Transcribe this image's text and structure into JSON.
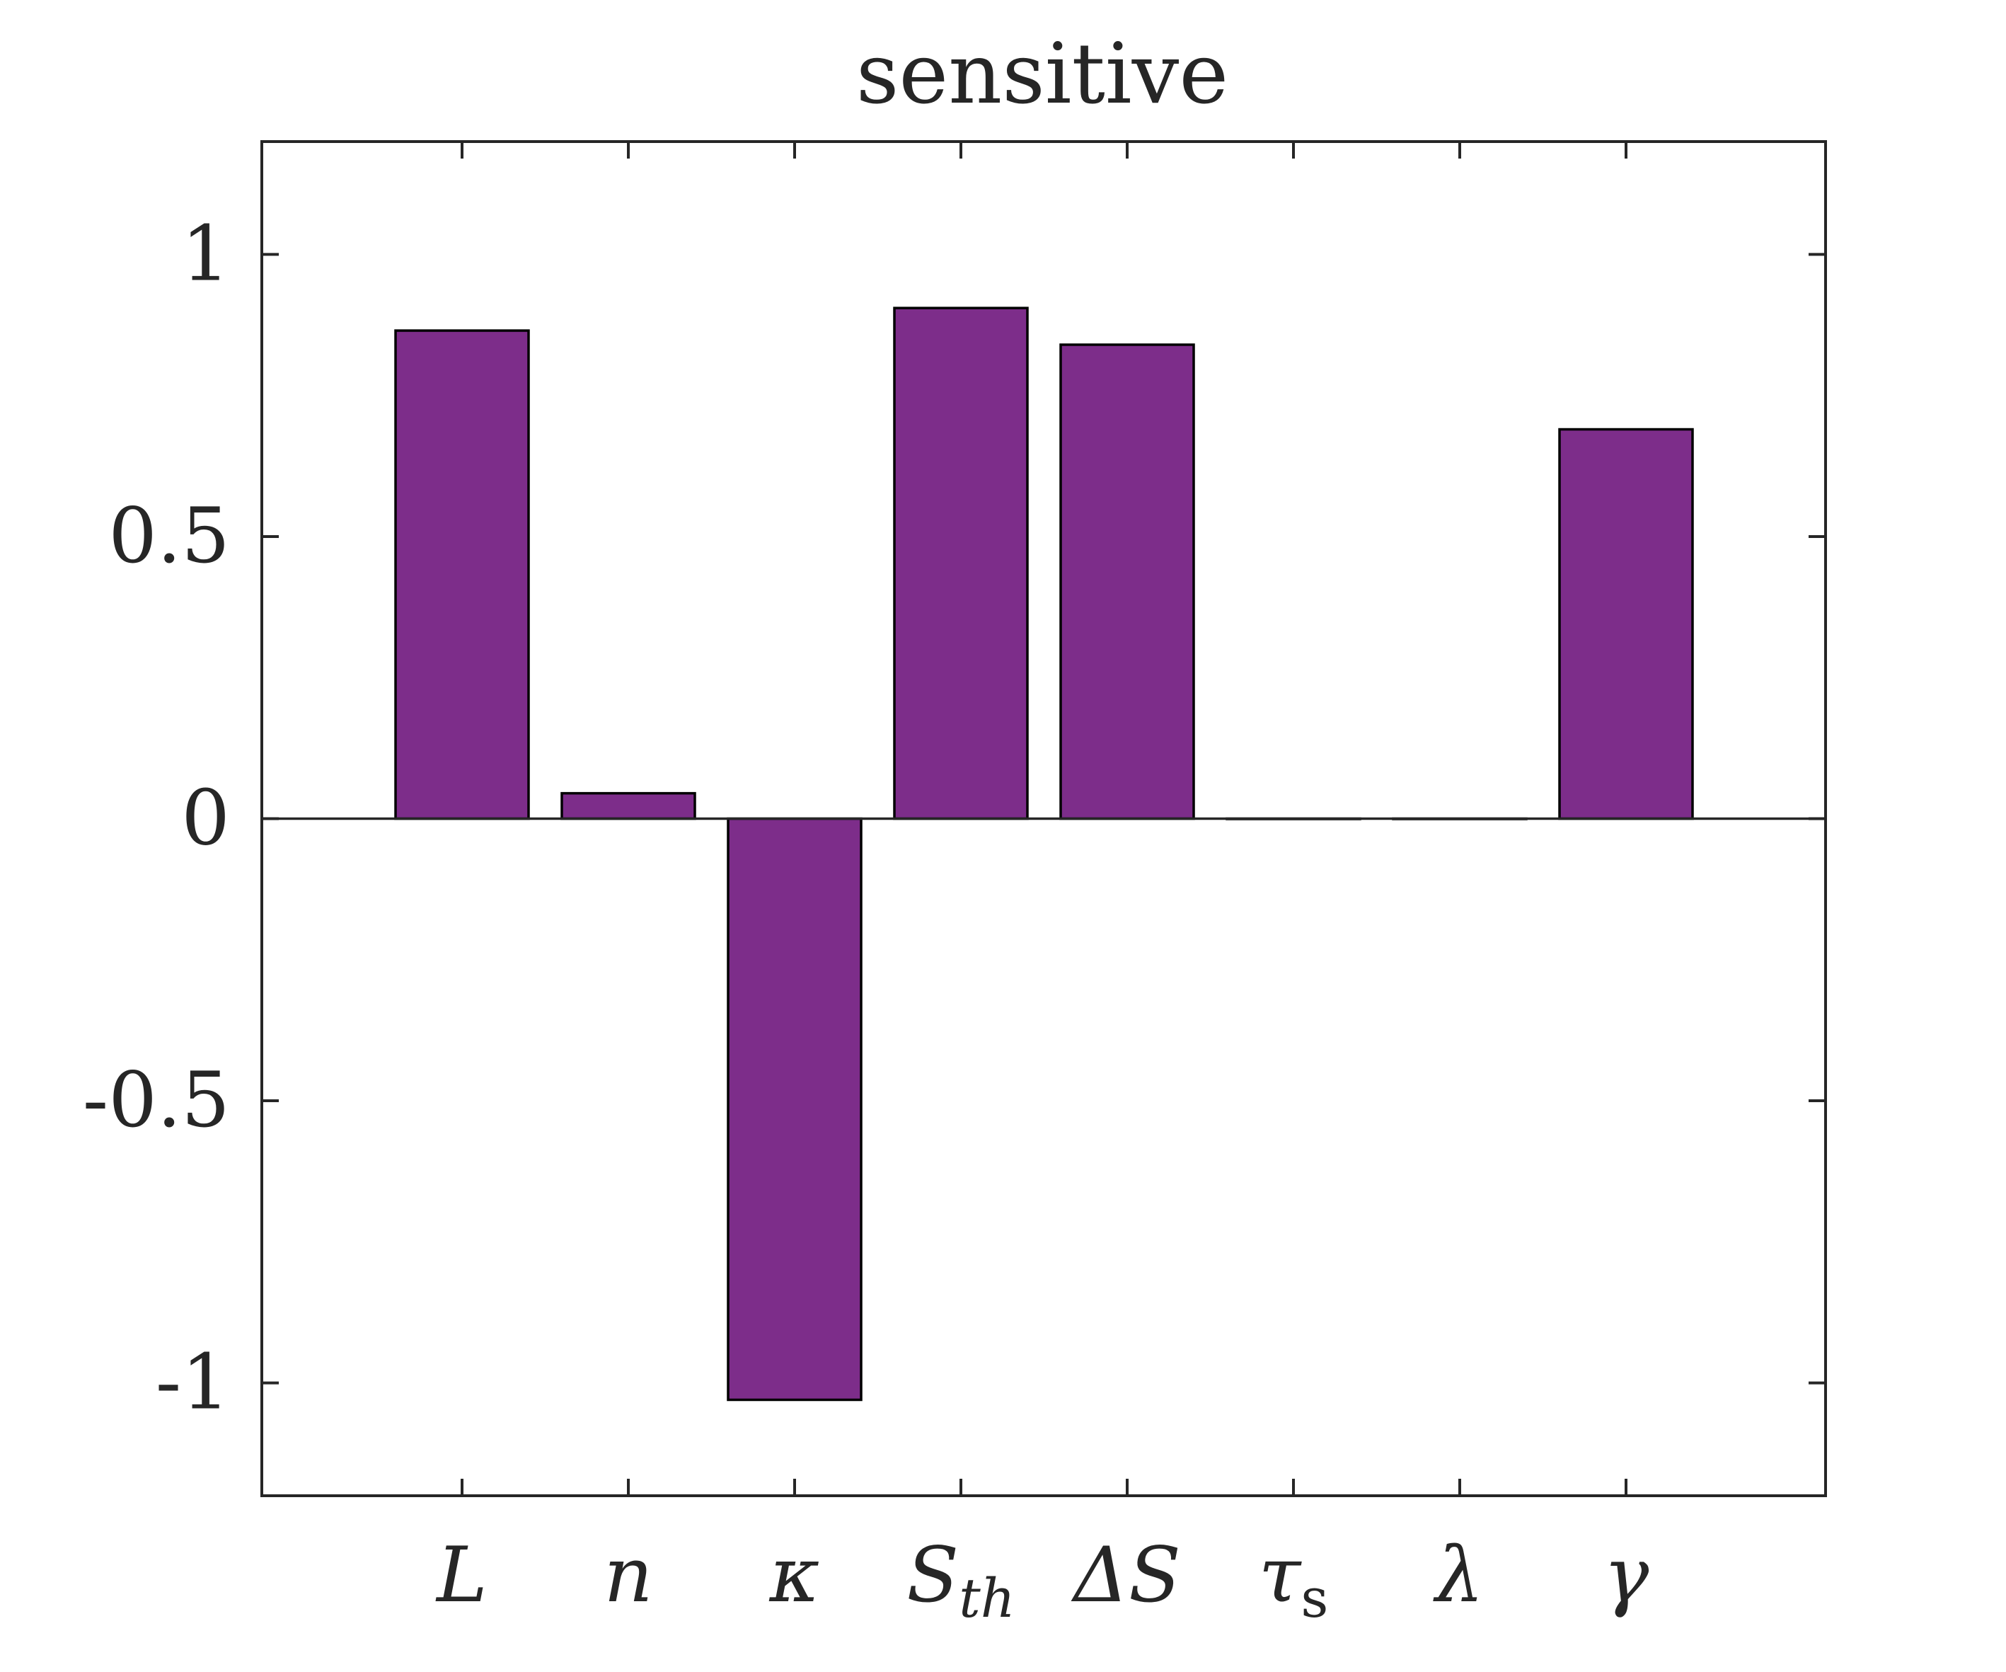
{
  "chart_data": {
    "type": "bar",
    "title": "sensitive",
    "xlabel": "",
    "ylabel": "",
    "categories": [
      "L",
      "n",
      "κ",
      "Sth",
      "ΔS",
      "τs",
      "λ",
      "γ"
    ],
    "category_labels": [
      {
        "base": "L",
        "sub": ""
      },
      {
        "base": "n",
        "sub": ""
      },
      {
        "base": "κ",
        "sub": ""
      },
      {
        "base": "S",
        "sub": "th"
      },
      {
        "base": "ΔS",
        "sub": ""
      },
      {
        "base": "τ",
        "sub": "s"
      },
      {
        "base": "λ",
        "sub": ""
      },
      {
        "base": "γ",
        "sub": ""
      }
    ],
    "values": [
      0.865,
      0.045,
      -1.03,
      0.905,
      0.84,
      0.0,
      0.0,
      0.69
    ],
    "ylim": [
      -1.2,
      1.2
    ],
    "yticks": [
      1,
      0.5,
      0,
      -0.5,
      -1
    ],
    "ytick_labels": [
      "1",
      "0.5",
      "0",
      "-0.5",
      "-1"
    ],
    "bar_color": "#7d2d8a",
    "grid": false,
    "legend": false
  }
}
